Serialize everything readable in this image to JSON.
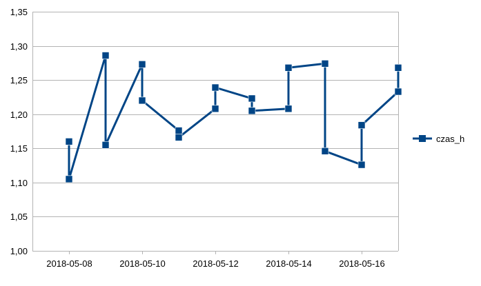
{
  "chart_data": {
    "type": "line",
    "x_axis": {
      "tick_labels": [
        "2018-05-08",
        "2018-05-10",
        "2018-05-12",
        "2018-05-14",
        "2018-05-16"
      ],
      "range": [
        "2018-05-07",
        "2018-05-17"
      ]
    },
    "y_axis": {
      "tick_labels": [
        "1,00",
        "1,05",
        "1,10",
        "1,15",
        "1,20",
        "1,25",
        "1,30",
        "1,35"
      ],
      "ticks": [
        1.0,
        1.05,
        1.1,
        1.15,
        1.2,
        1.25,
        1.3,
        1.35
      ],
      "ylim": [
        1.0,
        1.35
      ]
    },
    "grid": "horizontal",
    "legend_position": "right",
    "series": [
      {
        "name": "czas_h",
        "color": "#004586",
        "marker": "square",
        "points": [
          {
            "x": "2018-05-08",
            "y": 1.16
          },
          {
            "x": "2018-05-08",
            "y": 1.105
          },
          {
            "x": "2018-05-09",
            "y": 1.286
          },
          {
            "x": "2018-05-09",
            "y": 1.155
          },
          {
            "x": "2018-05-10",
            "y": 1.273
          },
          {
            "x": "2018-05-10",
            "y": 1.22
          },
          {
            "x": "2018-05-11",
            "y": 1.176
          },
          {
            "x": "2018-05-11",
            "y": 1.166
          },
          {
            "x": "2018-05-12",
            "y": 1.208
          },
          {
            "x": "2018-05-12",
            "y": 1.239
          },
          {
            "x": "2018-05-13",
            "y": 1.223
          },
          {
            "x": "2018-05-13",
            "y": 1.205
          },
          {
            "x": "2018-05-14",
            "y": 1.208
          },
          {
            "x": "2018-05-14",
            "y": 1.268
          },
          {
            "x": "2018-05-15",
            "y": 1.274
          },
          {
            "x": "2018-05-15",
            "y": 1.146
          },
          {
            "x": "2018-05-16",
            "y": 1.126
          },
          {
            "x": "2018-05-16",
            "y": 1.184
          },
          {
            "x": "2018-05-17",
            "y": 1.233
          },
          {
            "x": "2018-05-17",
            "y": 1.268
          }
        ]
      }
    ]
  }
}
